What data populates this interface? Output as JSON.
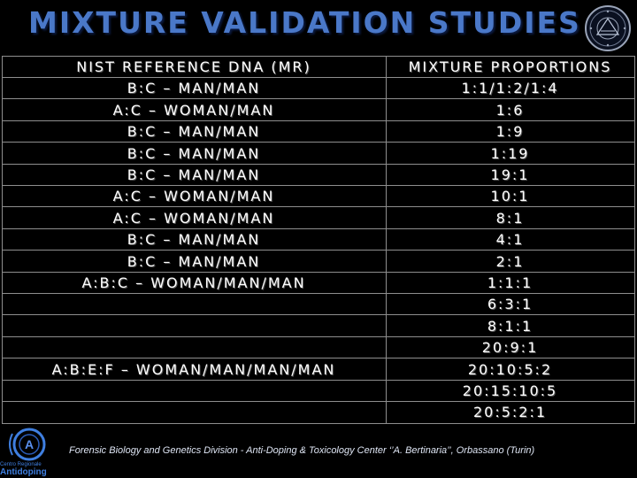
{
  "title": "MIXTURE VALIDATION STUDIES",
  "table": {
    "headers": [
      "NIST REFERENCE DNA (MR)",
      "MIXTURE PROPORTIONS"
    ],
    "rows": [
      [
        "B:C – MAN/MAN",
        "1:1/1:2/1:4"
      ],
      [
        "A:C – WOMAN/MAN",
        "1:6"
      ],
      [
        "B:C – MAN/MAN",
        "1:9"
      ],
      [
        "B:C – MAN/MAN",
        "1:19"
      ],
      [
        "B:C – MAN/MAN",
        "19:1"
      ],
      [
        "A:C – WOMAN/MAN",
        "10:1"
      ],
      [
        "A:C – WOMAN/MAN",
        "8:1"
      ],
      [
        "B:C – MAN/MAN",
        "4:1"
      ],
      [
        "B:C – MAN/MAN",
        "2:1"
      ],
      [
        "A:B:C – WOMAN/MAN/MAN",
        "1:1:1"
      ],
      [
        "",
        "6:3:1"
      ],
      [
        "",
        "8:1:1"
      ],
      [
        "",
        "20:9:1"
      ],
      [
        "A:B:E:F – WOMAN/MAN/MAN/MAN",
        "20:10:5:2"
      ],
      [
        "",
        "20:15:10:5"
      ],
      [
        "",
        "20:5:2:1"
      ]
    ]
  },
  "footer": "Forensic Biology  and Genetics Division - Anti-Doping & Toxicology Center ‘’A. Bertinaria’’, Orbassano (Turin)",
  "logo": {
    "top_icon": "university-seal-icon",
    "bottom_icon": "cad-logo-icon",
    "bottom_text_small": "Centro Regionale",
    "bottom_text_big": "Antidoping"
  },
  "colors": {
    "background": "#000000",
    "title": "#4a78c8",
    "grid": "#8e8e8e",
    "text": "#ffffff",
    "logo_blue": "#3f7fe0"
  }
}
